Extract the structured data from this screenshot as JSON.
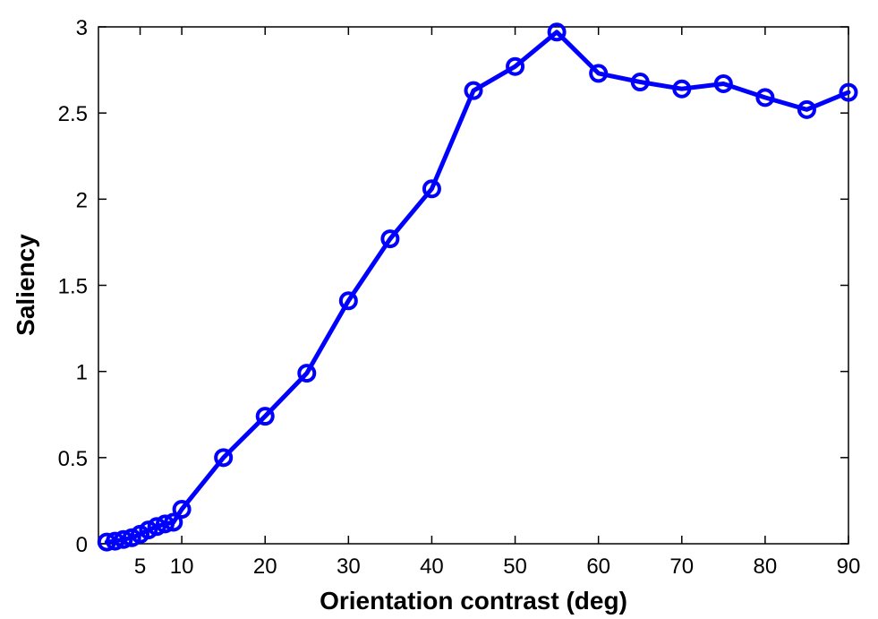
{
  "chart_data": {
    "type": "line",
    "title": "",
    "xlabel": "Orientation contrast (deg)",
    "ylabel": "Saliency",
    "xlim": [
      0,
      90
    ],
    "ylim": [
      0,
      3
    ],
    "x_ticks": [
      5,
      10,
      20,
      30,
      40,
      50,
      60,
      70,
      80,
      90
    ],
    "y_ticks": [
      0,
      0.5,
      1,
      1.5,
      2,
      2.5,
      3
    ],
    "x_tick_labels": [
      "5",
      "10",
      "20",
      "30",
      "40",
      "50",
      "60",
      "70",
      "80",
      "90"
    ],
    "y_tick_labels": [
      "0",
      "0.5",
      "1",
      "1.5",
      "2",
      "2.5",
      "3"
    ],
    "grid": false,
    "box": true,
    "color": "#0000ff",
    "marker": "circle",
    "series": [
      {
        "x": [
          1,
          2,
          3,
          4,
          5,
          6,
          7,
          8,
          9,
          10,
          15,
          20,
          25,
          30,
          35,
          40,
          45,
          50,
          55,
          60,
          65,
          70,
          75,
          80,
          85,
          90
        ],
        "y": [
          0.01,
          0.015,
          0.025,
          0.035,
          0.055,
          0.08,
          0.1,
          0.115,
          0.125,
          0.2,
          0.5,
          0.74,
          0.99,
          1.41,
          1.77,
          2.06,
          2.63,
          2.77,
          2.97,
          2.73,
          2.68,
          2.64,
          2.67,
          2.59,
          2.52,
          2.62
        ]
      }
    ]
  }
}
